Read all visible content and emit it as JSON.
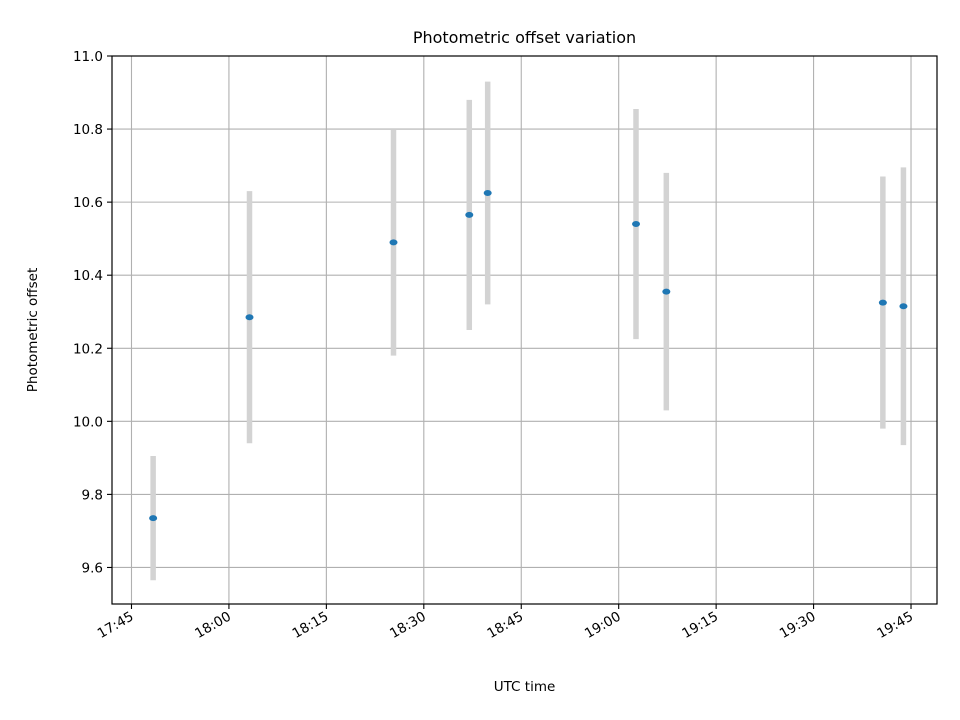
{
  "chart_data": {
    "type": "scatter",
    "title": "Photometric offset variation",
    "xlabel": "UTC time",
    "ylabel": "Photometric offset",
    "ylim": [
      9.5,
      11.0
    ],
    "xlim": [
      "17:42",
      "19:49"
    ],
    "grid": true,
    "x_ticks": [
      "17:45",
      "18:00",
      "18:15",
      "18:30",
      "18:45",
      "19:00",
      "19:15",
      "19:30",
      "19:45"
    ],
    "y_ticks": [
      "9.6",
      "9.8",
      "10.0",
      "10.2",
      "10.4",
      "10.6",
      "10.8",
      "11.0"
    ],
    "series": [
      {
        "x": [
          "17:48:20",
          "18:03:10",
          "18:25:20",
          "18:37:00",
          "18:39:50",
          "19:02:40",
          "19:07:20",
          "19:40:40",
          "19:43:50"
        ],
        "y": [
          9.735,
          10.285,
          10.49,
          10.565,
          10.625,
          10.54,
          10.355,
          10.325,
          10.315
        ],
        "yerr": [
          0.17,
          0.345,
          0.31,
          0.315,
          0.305,
          0.315,
          0.325,
          0.345,
          0.38
        ],
        "color": "#1f77b4",
        "errorbar_color": "#d3d3d3"
      }
    ]
  }
}
